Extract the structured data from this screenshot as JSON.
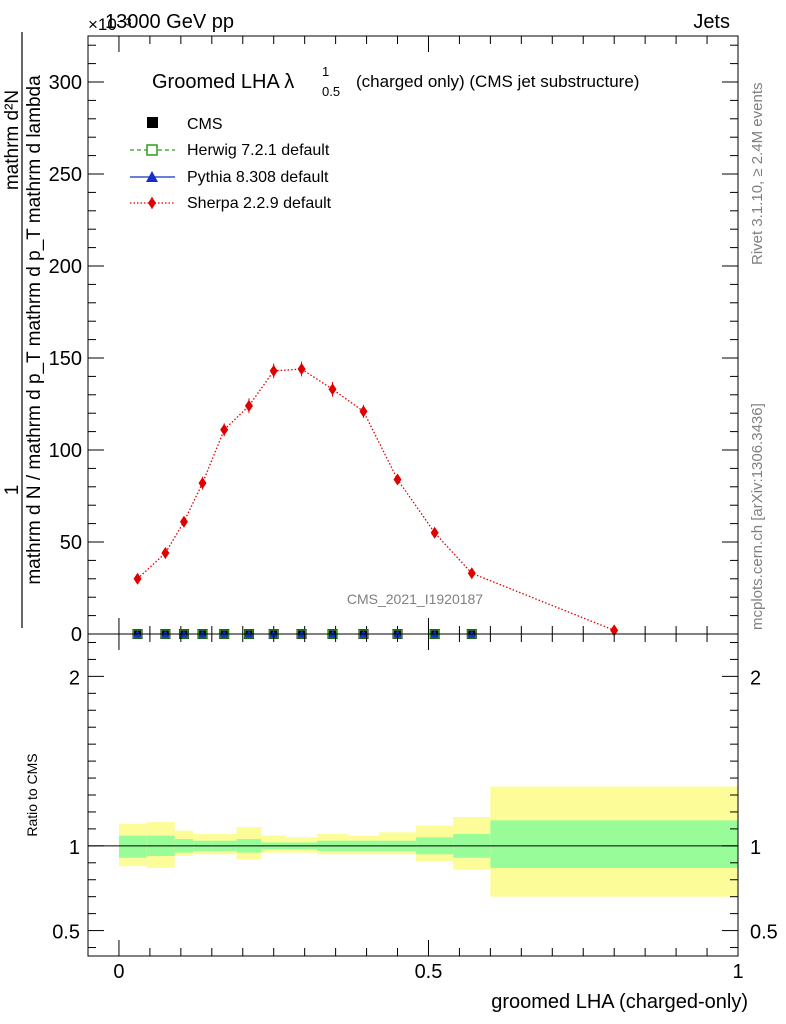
{
  "header": {
    "energy": "13000 GeV pp",
    "process": "Jets",
    "scale_exponent": "×10⁻³"
  },
  "side_labels": {
    "rivet": "Rivet 3.1.10, ≥ 2.4M events",
    "mcplots": "mcplots.cern.ch [arXiv:1306.3436]"
  },
  "colors": {
    "cms": "#000000",
    "herwig": "#2c9c1c",
    "pythia": "#1430c8",
    "sherpa": "#e00000",
    "band_inner": "#98fc98",
    "band_outer": "#fcfc98"
  },
  "chart_data": [
    {
      "type": "scatter",
      "title": "Groomed LHA λ",
      "title_lambda_sub": "0.5",
      "title_lambda_sup": "1",
      "title_suffix": "(charged only) (CMS jet substructure)",
      "watermark": "CMS_2021_I1920187",
      "ylabel_numerator": "1",
      "ylabel_denominator": "mathrm d N / mathrm d p_T mathrm d p_T mathrm d lambda",
      "ylabel_top": "mathrm d²N",
      "xlim": [
        -0.05,
        1.0
      ],
      "ylim": [
        0,
        325
      ],
      "y_scale": 0.001,
      "xticks": [
        0,
        0.5,
        1
      ],
      "xtick_labels": [
        "0",
        "0.5",
        "1"
      ],
      "yticks": [
        0,
        50,
        100,
        150,
        200,
        250,
        300
      ],
      "ytick_labels": [
        "0",
        "50",
        "100",
        "150",
        "200",
        "250",
        "300"
      ],
      "legend_position": "top-left",
      "legend": [
        "CMS",
        "Herwig 7.2.1 default",
        "Pythia 8.308 default",
        "Sherpa 2.2.9 default"
      ],
      "series": [
        {
          "name": "CMS",
          "x": [
            0.03,
            0.075,
            0.105,
            0.135,
            0.17,
            0.21,
            0.25,
            0.295,
            0.345,
            0.395,
            0.45,
            0.51,
            0.57
          ],
          "values": [
            0,
            0,
            0,
            0,
            0,
            0,
            0,
            0,
            0,
            0,
            0,
            0,
            0
          ]
        },
        {
          "name": "Herwig 7.2.1 default",
          "x": [
            0.03,
            0.075,
            0.105,
            0.135,
            0.17,
            0.21,
            0.25,
            0.295,
            0.345,
            0.395,
            0.45,
            0.51,
            0.57
          ],
          "values": [
            0,
            0,
            0,
            0,
            0,
            0,
            0,
            0,
            0,
            0,
            0,
            0,
            0
          ]
        },
        {
          "name": "Pythia 8.308 default",
          "x": [
            0.03,
            0.075,
            0.105,
            0.135,
            0.17,
            0.21,
            0.25,
            0.295,
            0.345,
            0.395,
            0.45,
            0.51,
            0.57
          ],
          "values": [
            0,
            0,
            0,
            0,
            0,
            0,
            0,
            0,
            0,
            0,
            0,
            0,
            0
          ]
        },
        {
          "name": "Sherpa 2.2.9 default",
          "x": [
            0.03,
            0.075,
            0.105,
            0.135,
            0.17,
            0.21,
            0.25,
            0.295,
            0.345,
            0.395,
            0.45,
            0.51,
            0.57,
            0.8
          ],
          "values": [
            30,
            44,
            61,
            82,
            111,
            124,
            143,
            144,
            133,
            121,
            84,
            55,
            33,
            2
          ],
          "errors": [
            2.5,
            3,
            3,
            3.5,
            3.5,
            4,
            4,
            4,
            4,
            3.5,
            3,
            2.5,
            2,
            1
          ]
        }
      ]
    },
    {
      "type": "area",
      "ylabel": "Ratio to CMS",
      "xlabel": "groomed LHA (charged-only)",
      "xlim": [
        -0.05,
        1.0
      ],
      "ylim": [
        0.35,
        2.25
      ],
      "xticks": [
        0,
        0.5,
        1
      ],
      "xtick_labels": [
        "0",
        "0.5",
        "1"
      ],
      "yticks": [
        0.5,
        1,
        2
      ],
      "ytick_labels": [
        "0.5",
        "1",
        "2"
      ],
      "reference_line": 1,
      "bins": [
        {
          "x0": 0.0,
          "x1": 0.045,
          "inner": [
            0.93,
            1.06
          ],
          "outer": [
            0.88,
            1.13
          ]
        },
        {
          "x0": 0.045,
          "x1": 0.09,
          "inner": [
            0.94,
            1.06
          ],
          "outer": [
            0.87,
            1.14
          ]
        },
        {
          "x0": 0.09,
          "x1": 0.12,
          "inner": [
            0.96,
            1.04
          ],
          "outer": [
            0.94,
            1.09
          ]
        },
        {
          "x0": 0.12,
          "x1": 0.15,
          "inner": [
            0.97,
            1.03
          ],
          "outer": [
            0.95,
            1.07
          ]
        },
        {
          "x0": 0.15,
          "x1": 0.19,
          "inner": [
            0.97,
            1.03
          ],
          "outer": [
            0.95,
            1.07
          ]
        },
        {
          "x0": 0.19,
          "x1": 0.23,
          "inner": [
            0.96,
            1.04
          ],
          "outer": [
            0.92,
            1.11
          ]
        },
        {
          "x0": 0.23,
          "x1": 0.27,
          "inner": [
            0.98,
            1.02
          ],
          "outer": [
            0.96,
            1.06
          ]
        },
        {
          "x0": 0.27,
          "x1": 0.32,
          "inner": [
            0.98,
            1.02
          ],
          "outer": [
            0.96,
            1.05
          ]
        },
        {
          "x0": 0.32,
          "x1": 0.37,
          "inner": [
            0.97,
            1.03
          ],
          "outer": [
            0.95,
            1.07
          ]
        },
        {
          "x0": 0.37,
          "x1": 0.42,
          "inner": [
            0.97,
            1.03
          ],
          "outer": [
            0.95,
            1.06
          ]
        },
        {
          "x0": 0.42,
          "x1": 0.48,
          "inner": [
            0.97,
            1.03
          ],
          "outer": [
            0.95,
            1.08
          ]
        },
        {
          "x0": 0.48,
          "x1": 0.54,
          "inner": [
            0.95,
            1.05
          ],
          "outer": [
            0.91,
            1.12
          ]
        },
        {
          "x0": 0.54,
          "x1": 0.6,
          "inner": [
            0.93,
            1.07
          ],
          "outer": [
            0.86,
            1.17
          ]
        },
        {
          "x0": 0.6,
          "x1": 1.0,
          "inner": [
            0.87,
            1.15
          ],
          "outer": [
            0.7,
            1.35
          ]
        }
      ]
    }
  ]
}
